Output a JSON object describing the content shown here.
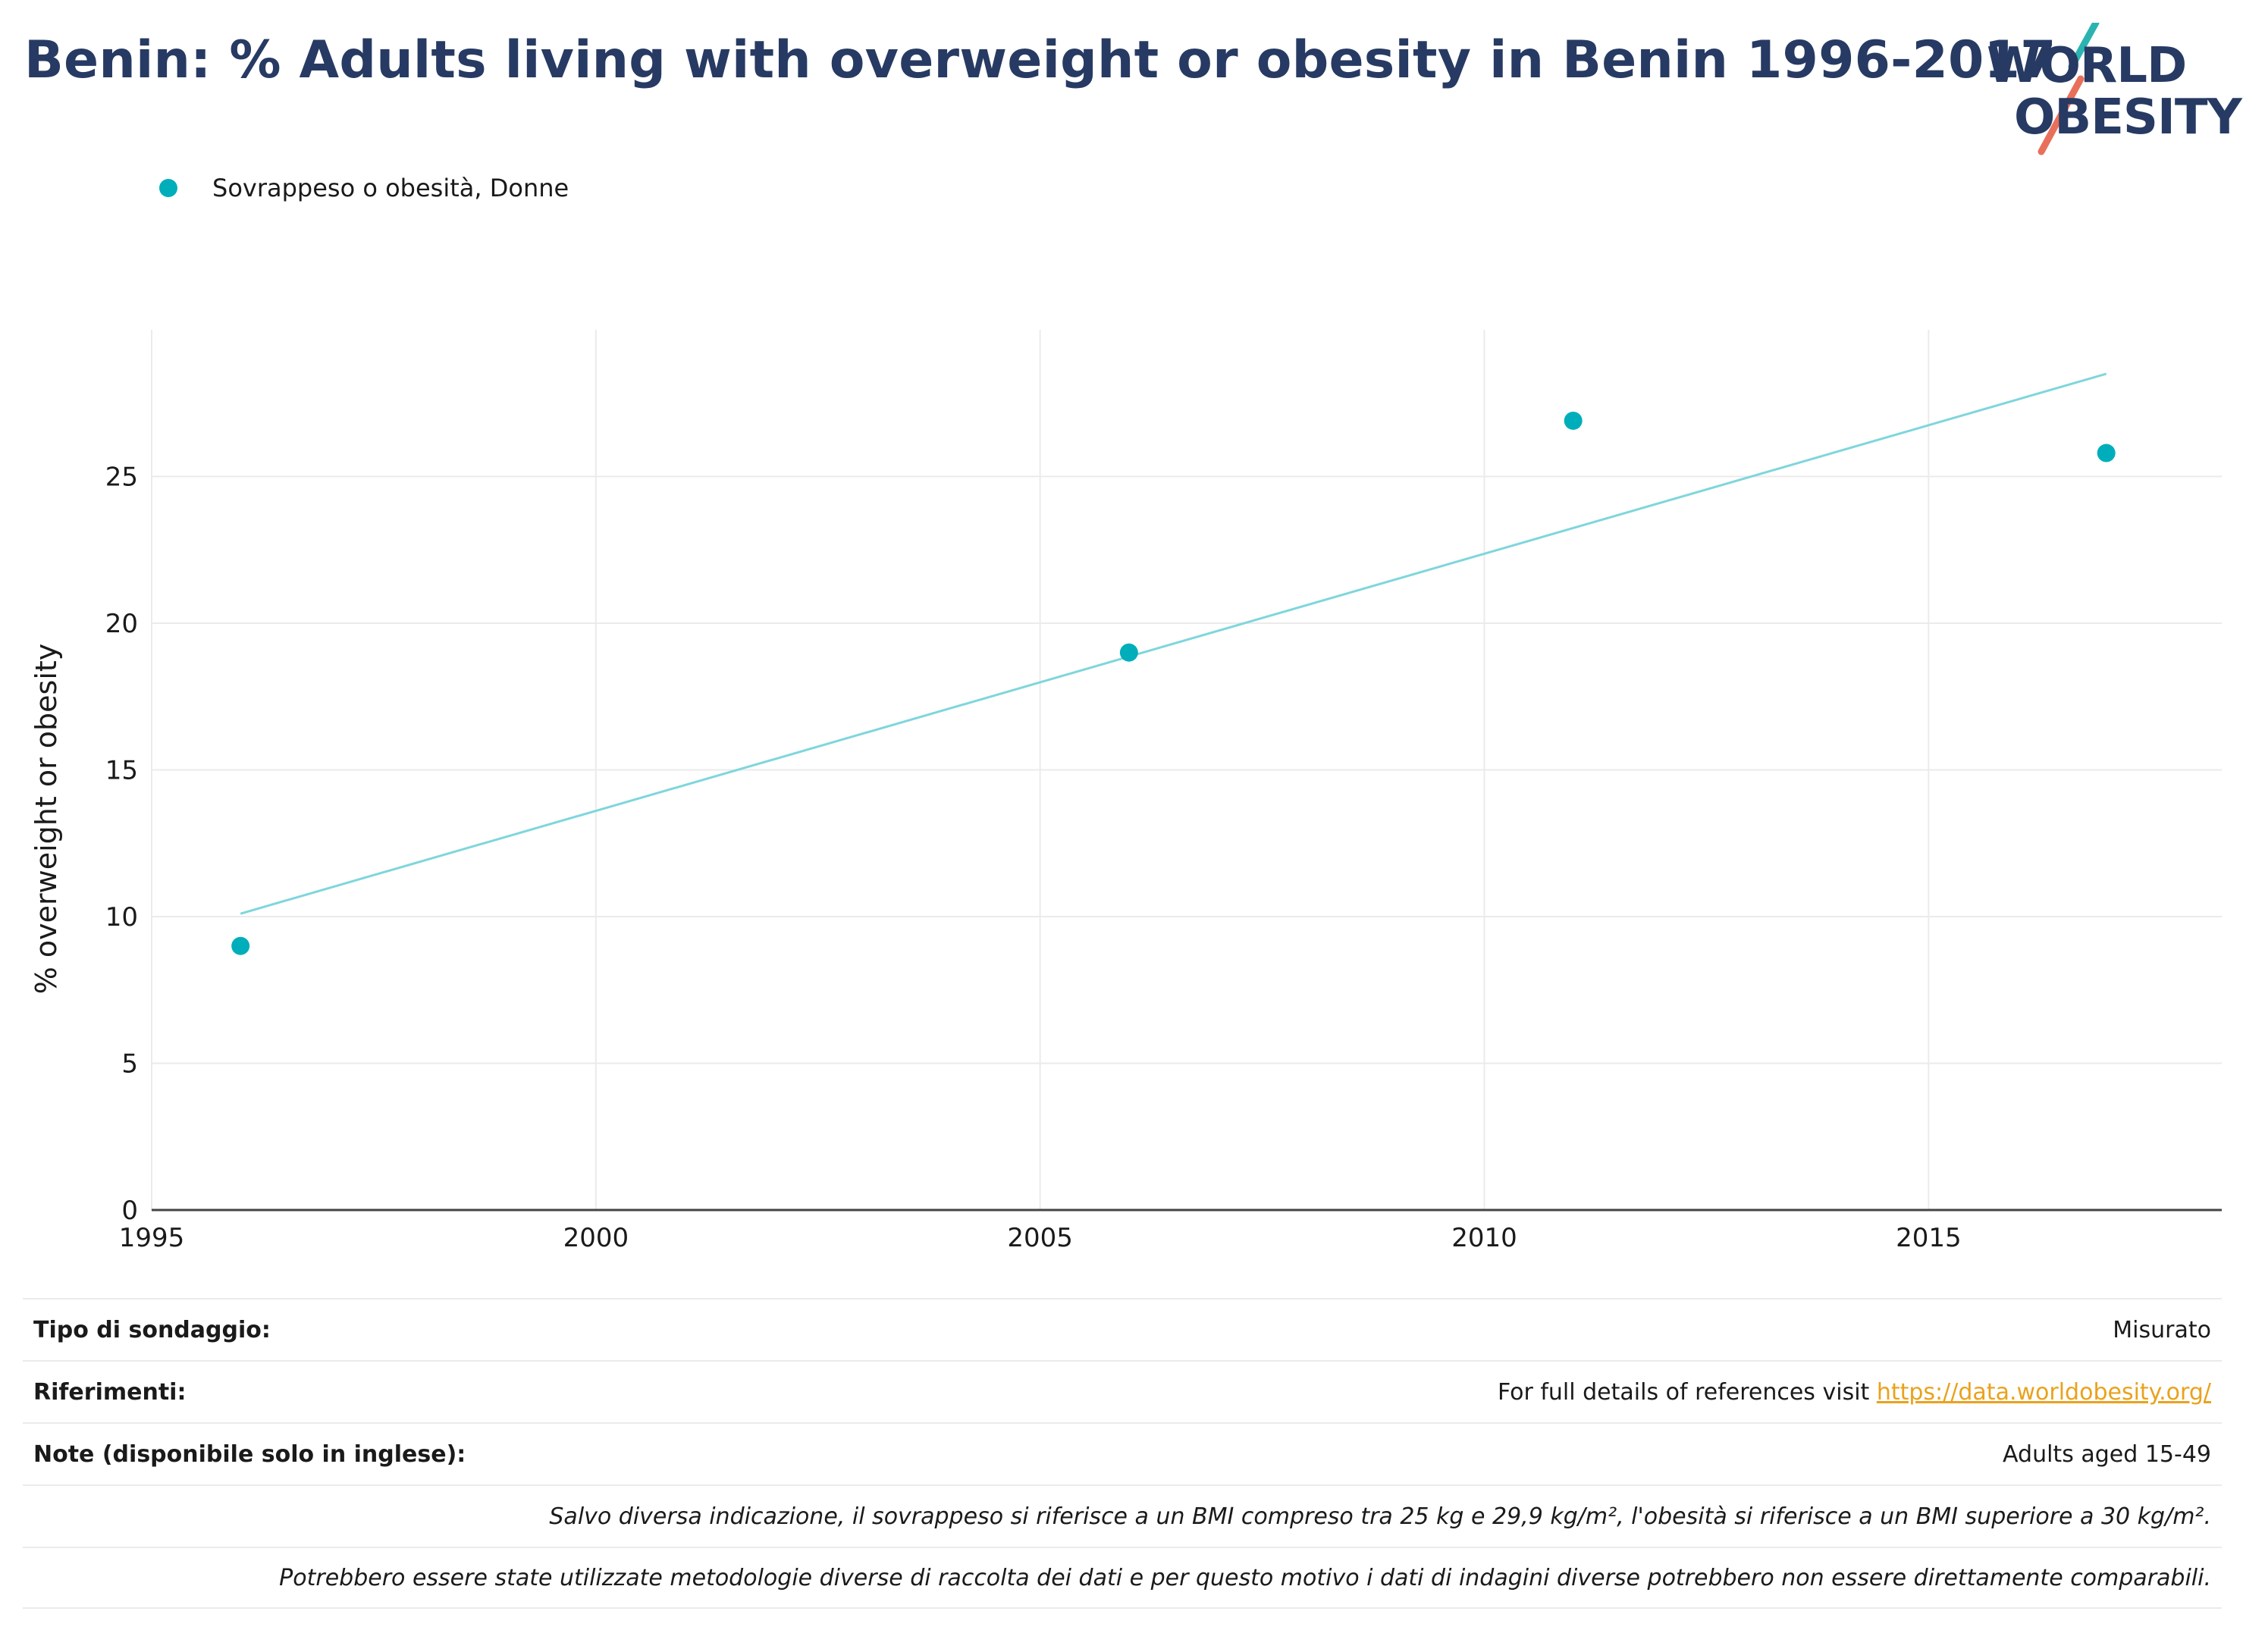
{
  "title": "Benin: % Adults living with overweight or obesity in Benin 1996-2017",
  "logo": {
    "line1": "WORLD",
    "line2": "OBESITY",
    "accent_teal": "#2bb3b1",
    "accent_red": "#e8705b"
  },
  "legend": {
    "label": "Sovrappeso o obesità, Donne"
  },
  "colors": {
    "point": "#00aebb",
    "trend": "#7fd6dc",
    "text": "#273a63"
  },
  "chart_data": {
    "type": "scatter",
    "title": "Benin: % Adults living with overweight or obesity in Benin 1996-2017",
    "xlabel": "",
    "ylabel": "% overweight or obesity",
    "xlim": [
      1995,
      2018.3
    ],
    "ylim": [
      0,
      30
    ],
    "xticks": [
      1995,
      2000,
      2005,
      2010,
      2015
    ],
    "yticks": [
      0,
      5,
      10,
      15,
      20,
      25
    ],
    "grid": true,
    "legend_position": "top-left",
    "series": [
      {
        "name": "Sovrappeso o obesità, Donne",
        "x": [
          1996,
          2006,
          2011,
          2017
        ],
        "y": [
          9.0,
          19.0,
          26.9,
          25.8
        ]
      }
    ],
    "trendline": {
      "x": [
        1996,
        2017
      ],
      "y": [
        10.1,
        28.5
      ]
    }
  },
  "footer": {
    "rows": [
      {
        "label": "Tipo di sondaggio:",
        "value": "Misurato"
      },
      {
        "label": "Riferimenti:",
        "value_prefix": "For full details of references visit ",
        "link": "https://data.worldobesity.org/"
      },
      {
        "label": "Note (disponibile solo in inglese):",
        "value": "Adults aged 15-49"
      }
    ],
    "notes": [
      "Salvo diversa indicazione, il sovrappeso si riferisce a un BMI compreso tra 25 kg e 29,9 kg/m², l'obesità si riferisce a un BMI superiore a 30 kg/m².",
      "Potrebbero essere state utilizzate metodologie diverse di raccolta dei dati e per questo motivo i dati di indagini diverse potrebbero non essere direttamente comparabili."
    ]
  }
}
